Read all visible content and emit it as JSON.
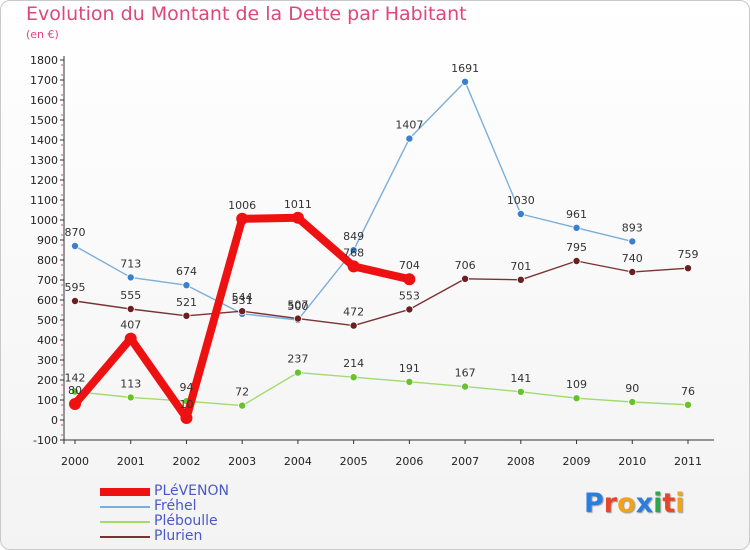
{
  "header": {
    "title": "Evolution du Montant de la Dette par Habitant",
    "subtitle": "(en €)"
  },
  "logo": {
    "text": "Proxiti",
    "colors": [
      "#2b7de0",
      "#e8462b",
      "#f0a21a",
      "#2b7de0",
      "#2aa84a",
      "#e8462b",
      "#f0a21a"
    ]
  },
  "colors": {
    "title": "#e0457b",
    "axis_text": "#222222",
    "grid_tick": "#e0457b"
  },
  "chart_data": {
    "type": "line",
    "title": "Evolution du Montant de la Dette par Habitant",
    "subtitle": "(en €)",
    "x": [
      "2000",
      "2001",
      "2002",
      "2003",
      "2004",
      "2005",
      "2006",
      "2007",
      "2008",
      "2009",
      "2010",
      "2011"
    ],
    "ylim": [
      -100,
      1800
    ],
    "yticks": [
      -100,
      0,
      100,
      200,
      300,
      400,
      500,
      600,
      700,
      800,
      900,
      1000,
      1100,
      1200,
      1300,
      1400,
      1500,
      1600,
      1700,
      1800
    ],
    "legend_position": "bottom-left",
    "series": [
      {
        "name": "PLéVENON",
        "color": "#ee1111",
        "marker": "#ee1111",
        "thick": true,
        "values": [
          80,
          407,
          10,
          1006,
          1011,
          768,
          704,
          null,
          null,
          null,
          null,
          null
        ],
        "labels": [
          "80",
          "407",
          "10",
          "1006",
          "1011",
          "768",
          "704",
          null,
          null,
          null,
          null,
          null
        ]
      },
      {
        "name": "Fréhel",
        "color": "#7aaedb",
        "marker": "#3b7fd1",
        "thick": false,
        "values": [
          870,
          713,
          674,
          531,
          500,
          849,
          1407,
          1691,
          1030,
          961,
          893,
          null
        ],
        "labels": [
          "870",
          "713",
          "674",
          "531",
          "500",
          "849",
          "1407",
          "1691",
          "1030",
          "961",
          "893",
          null
        ]
      },
      {
        "name": "Pléboulle",
        "color": "#9fdc6e",
        "marker": "#66c42a",
        "thick": false,
        "values": [
          142,
          113,
          94,
          72,
          237,
          214,
          191,
          167,
          141,
          109,
          90,
          76
        ],
        "labels": [
          "142",
          "113",
          "94",
          "72",
          "237",
          "214",
          "191",
          "167",
          "141",
          "109",
          "90",
          "76"
        ]
      },
      {
        "name": "Plurien",
        "color": "#7a3333",
        "marker": "#6b1f1f",
        "thick": false,
        "values": [
          595,
          555,
          521,
          544,
          507,
          472,
          553,
          706,
          701,
          795,
          740,
          759
        ],
        "labels": [
          "595",
          "555",
          "521",
          "544",
          "507",
          "472",
          "553",
          "706",
          "701",
          "795",
          "740",
          "759"
        ]
      }
    ]
  }
}
